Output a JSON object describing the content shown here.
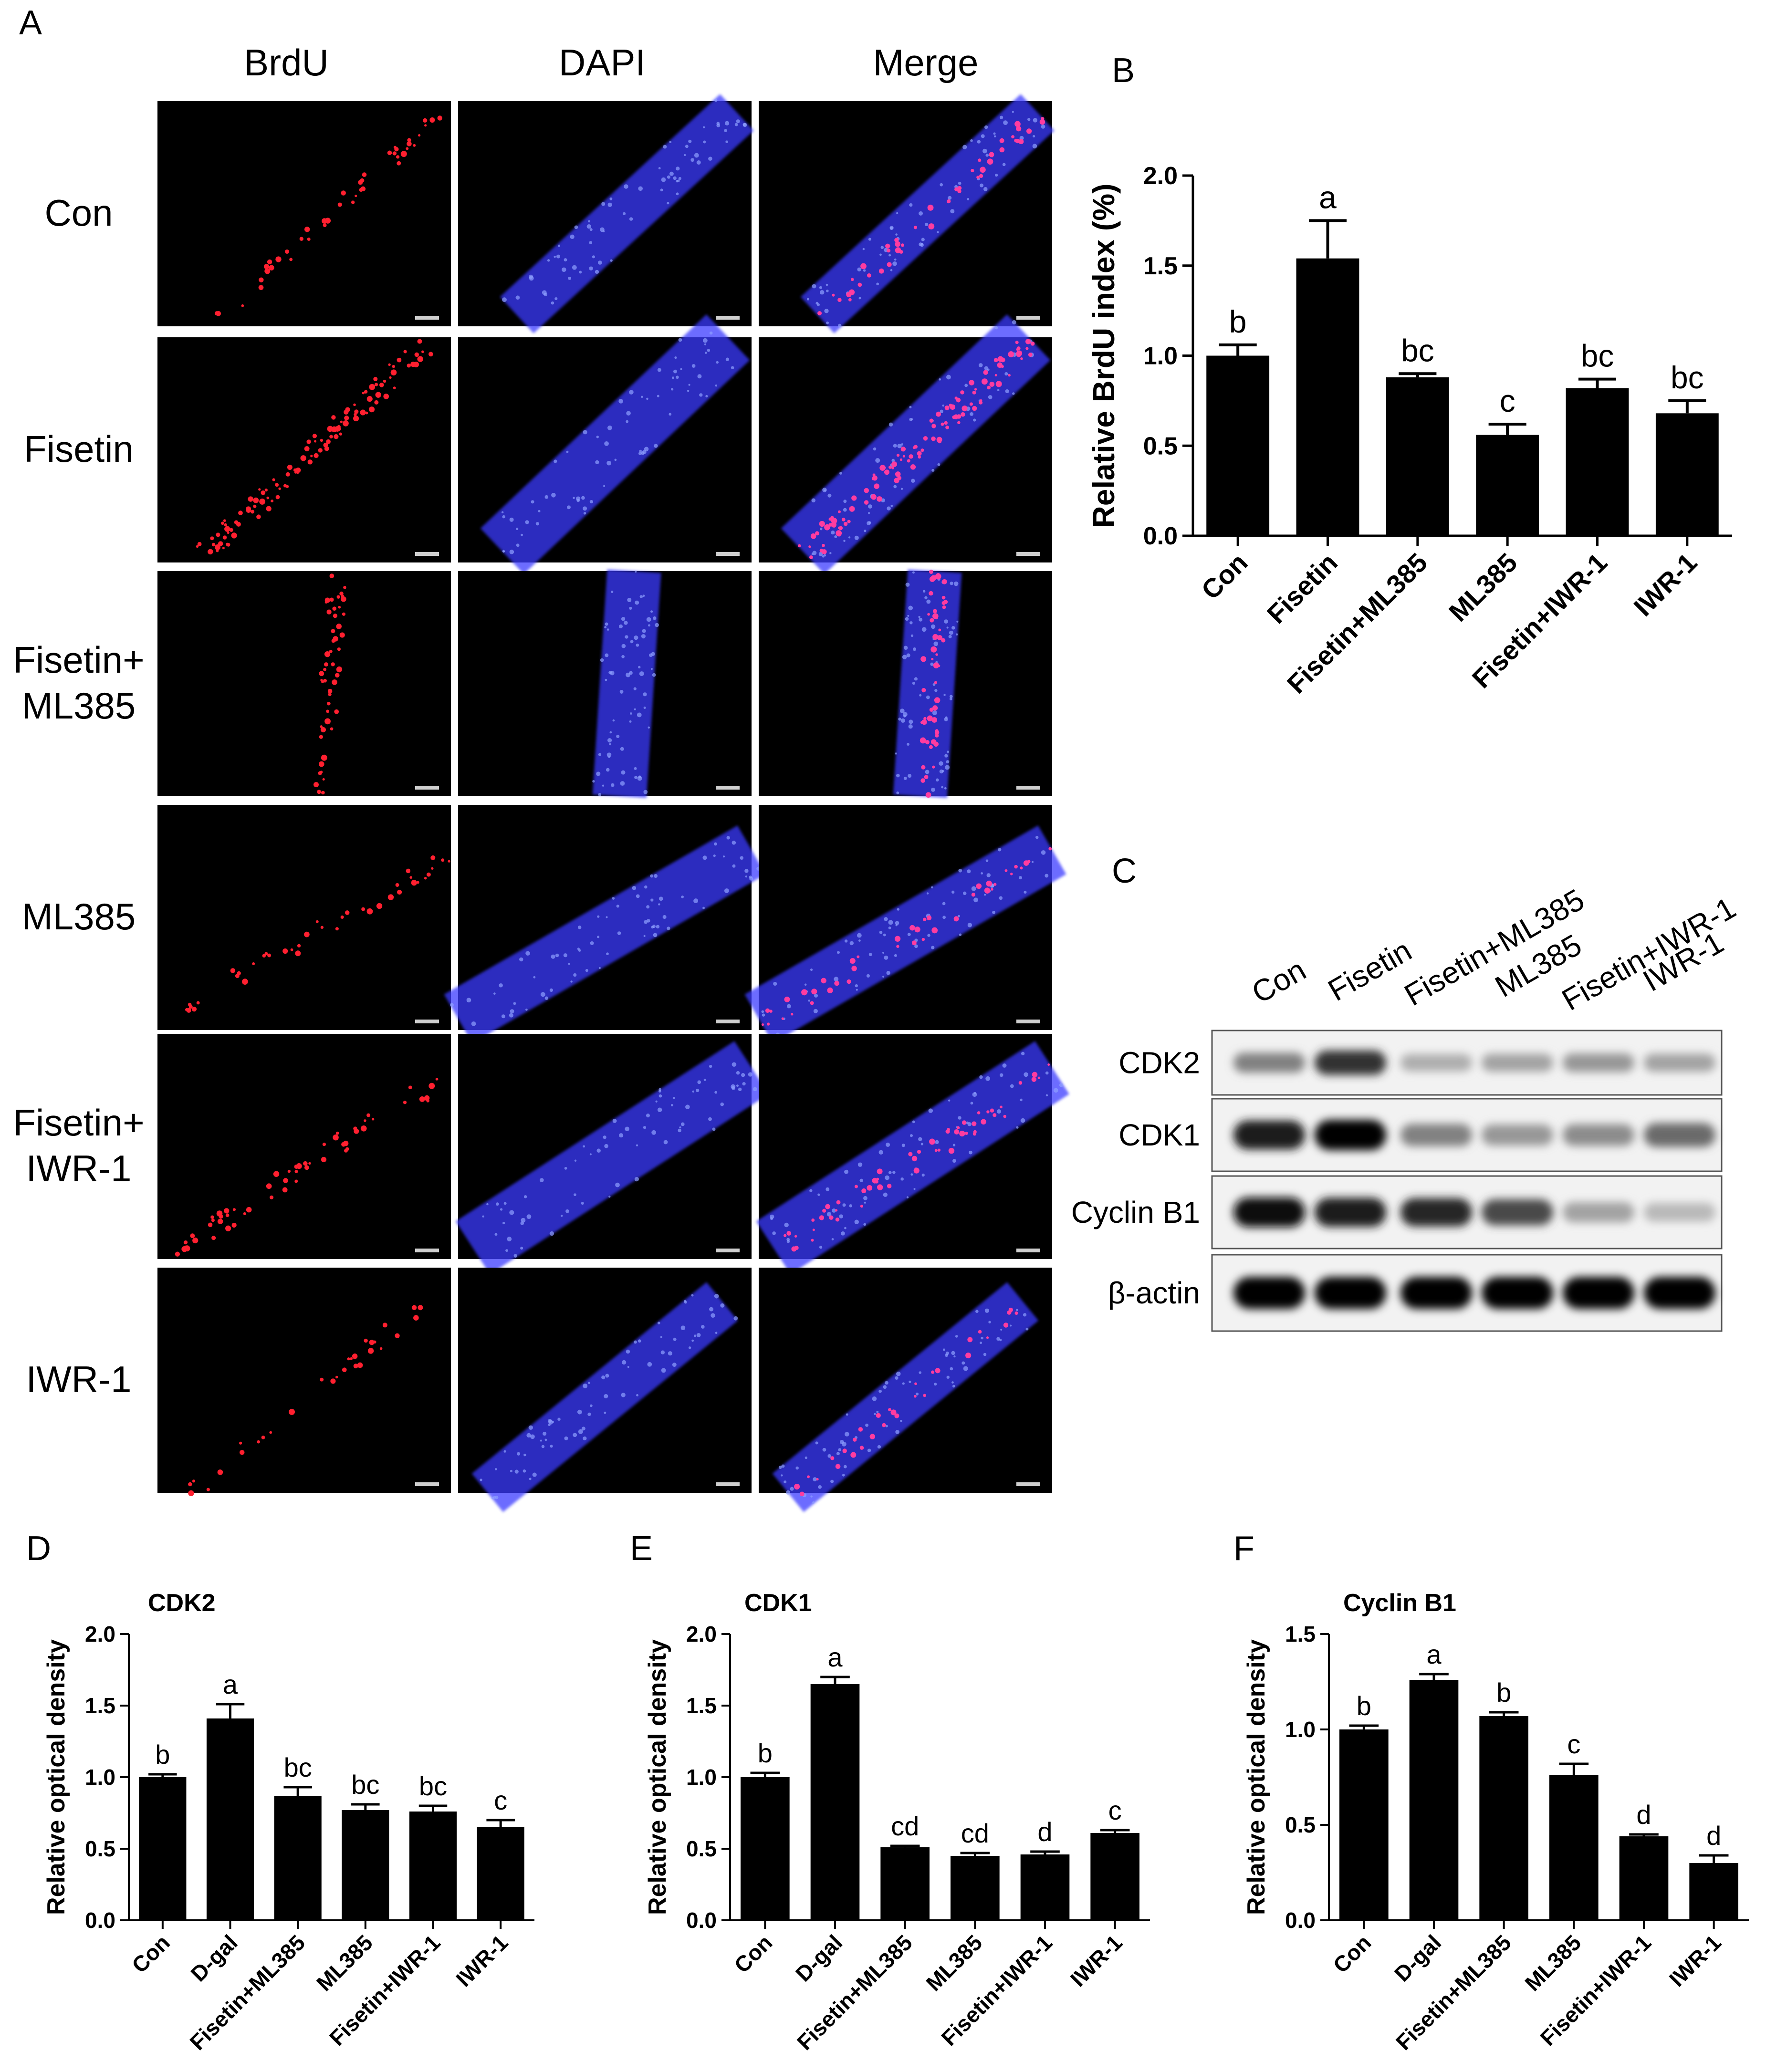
{
  "panel_labels": {
    "A": "A",
    "B": "B",
    "C": "C",
    "D": "D",
    "E": "E",
    "F": "F"
  },
  "panel_a": {
    "columns": [
      "BrdU",
      "DAPI",
      "Merge"
    ],
    "rows": [
      "Con",
      "Fisetin",
      "Fisetin+\nML385",
      "ML385",
      "Fisetin+\nIWR-1",
      "IWR-1"
    ]
  },
  "panel_c": {
    "lanes": [
      "Con",
      "Fisetin",
      "Fisetin+ML385",
      "ML385",
      "Fisetin+IWR-1",
      "IWR-1"
    ],
    "proteins": [
      "CDK2",
      "CDK1",
      "Cyclin B1",
      "β-actin"
    ],
    "band_intensity": [
      [
        0.45,
        0.8,
        0.25,
        0.3,
        0.35,
        0.3
      ],
      [
        0.9,
        1.0,
        0.45,
        0.35,
        0.4,
        0.55
      ],
      [
        0.95,
        0.9,
        0.85,
        0.7,
        0.3,
        0.2
      ],
      [
        1.0,
        1.0,
        1.0,
        1.0,
        1.0,
        1.0
      ]
    ]
  },
  "colors": {
    "bar": "#000000",
    "red_stain": "#ff2030",
    "blue_stain": "#3a3aff"
  },
  "chart_data": [
    {
      "panel": "B",
      "type": "bar",
      "title": "",
      "categories": [
        "Con",
        "Fisetin",
        "Fisetin+ML385",
        "ML385",
        "Fisetin+IWR-1",
        "IWR-1"
      ],
      "values": [
        1.0,
        1.54,
        0.88,
        0.56,
        0.82,
        0.68
      ],
      "errors": [
        0.06,
        0.21,
        0.02,
        0.06,
        0.05,
        0.07
      ],
      "significance": [
        "b",
        "a",
        "bc",
        "c",
        "bc",
        "bc"
      ],
      "xlabel": "",
      "ylabel": "Relative BrdU index (%)",
      "ylim": [
        0,
        2.0
      ],
      "yticks": [
        "0.0",
        "0.5",
        "1.0",
        "1.5",
        "2.0"
      ]
    },
    {
      "panel": "D",
      "type": "bar",
      "title": "CDK2",
      "categories": [
        "Con",
        "D-gal",
        "Fisetin+ML385",
        "ML385",
        "Fisetin+IWR-1",
        "IWR-1"
      ],
      "values": [
        1.0,
        1.41,
        0.87,
        0.77,
        0.76,
        0.65
      ],
      "errors": [
        0.02,
        0.1,
        0.06,
        0.04,
        0.04,
        0.05
      ],
      "significance": [
        "b",
        "a",
        "bc",
        "bc",
        "bc",
        "c"
      ],
      "xlabel": "",
      "ylabel": "Relative optical density",
      "ylim": [
        0,
        2.0
      ],
      "yticks": [
        "0.0",
        "0.5",
        "1.0",
        "1.5",
        "2.0"
      ]
    },
    {
      "panel": "E",
      "type": "bar",
      "title": "CDK1",
      "categories": [
        "Con",
        "D-gal",
        "Fisetin+ML385",
        "ML385",
        "Fisetin+IWR-1",
        "IWR-1"
      ],
      "values": [
        1.0,
        1.65,
        0.51,
        0.45,
        0.46,
        0.61
      ],
      "errors": [
        0.03,
        0.05,
        0.01,
        0.02,
        0.02,
        0.02
      ],
      "significance": [
        "b",
        "a",
        "cd",
        "cd",
        "d",
        "c"
      ],
      "xlabel": "",
      "ylabel": "Relative optical density",
      "ylim": [
        0,
        2.0
      ],
      "yticks": [
        "0.0",
        "0.5",
        "1.0",
        "1.5",
        "2.0"
      ]
    },
    {
      "panel": "F",
      "type": "bar",
      "title": "Cyclin B1",
      "categories": [
        "Con",
        "D-gal",
        "Fisetin+ML385",
        "ML385",
        "Fisetin+IWR-1",
        "IWR-1"
      ],
      "values": [
        1.0,
        1.26,
        1.07,
        0.76,
        0.44,
        0.3
      ],
      "errors": [
        0.02,
        0.03,
        0.02,
        0.06,
        0.01,
        0.04
      ],
      "significance": [
        "b",
        "a",
        "b",
        "c",
        "d",
        "d"
      ],
      "xlabel": "",
      "ylabel": "Relative optical density",
      "ylim": [
        0,
        1.5
      ],
      "yticks": [
        "0.0",
        "0.5",
        "1.0",
        "1.5"
      ]
    }
  ]
}
